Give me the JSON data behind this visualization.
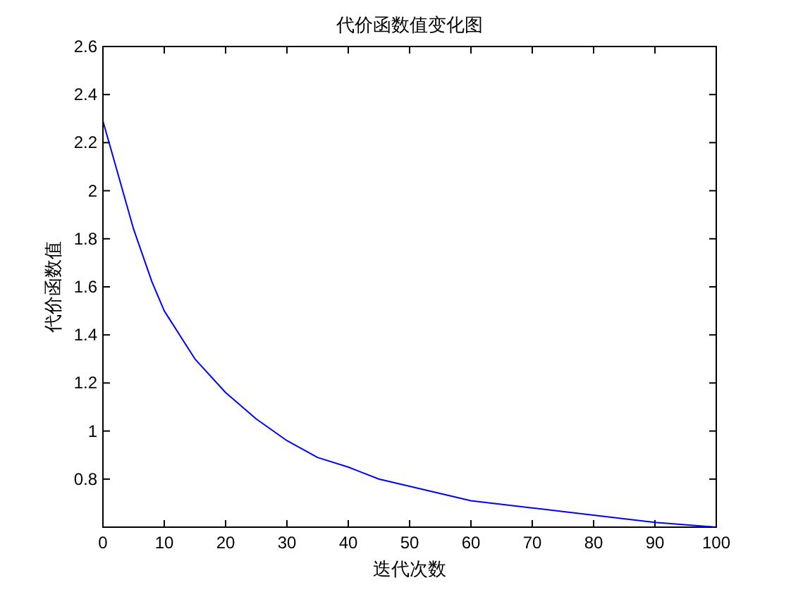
{
  "chart_data": {
    "type": "line",
    "title": "代价函数值变化图",
    "xlabel": "迭代次数",
    "ylabel": "代价函数值",
    "x": [
      0,
      2,
      5,
      8,
      10,
      15,
      20,
      25,
      30,
      35,
      40,
      45,
      50,
      60,
      70,
      80,
      90,
      100
    ],
    "series": [
      {
        "color": "#0000ff",
        "values": [
          2.29,
          2.11,
          1.84,
          1.62,
          1.5,
          1.3,
          1.16,
          1.05,
          0.96,
          0.89,
          0.85,
          0.8,
          0.77,
          0.71,
          0.68,
          0.65,
          0.62,
          0.6
        ]
      }
    ],
    "xlim": [
      0,
      100
    ],
    "ylim": [
      0.6,
      2.6
    ],
    "xticks": [
      0,
      10,
      20,
      30,
      40,
      50,
      60,
      70,
      80,
      90,
      100
    ],
    "yticks": [
      0.8,
      1,
      1.2,
      1.4,
      1.6,
      1.8,
      2,
      2.2,
      2.4,
      2.6
    ],
    "grid": false,
    "marker": "none",
    "line_style": "solid"
  }
}
